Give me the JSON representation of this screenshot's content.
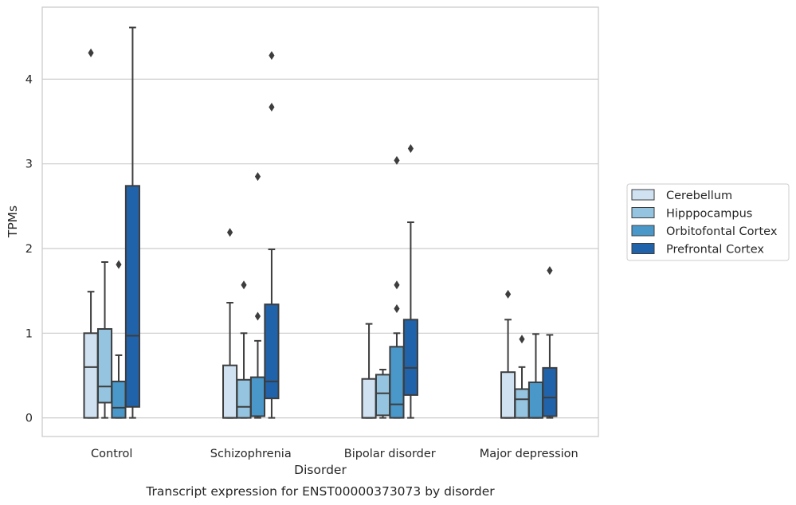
{
  "chart_data": {
    "type": "box",
    "title": "Transcript expression for ENST00000373073 by disorder",
    "xlabel": "Disorder",
    "ylabel": "TPMs",
    "ylim": [
      -0.22,
      4.85
    ],
    "yticks": [
      0,
      1,
      2,
      3,
      4
    ],
    "grid": "horizontal",
    "legend_position": "right",
    "categories": [
      "Control",
      "Schizophrenia",
      "Bipolar disorder",
      "Major depression"
    ],
    "series": [
      {
        "name": "Cerebellum",
        "color": "#d0e1f2",
        "boxes": [
          {
            "whislo": 0.0,
            "q1": 0.0,
            "med": 0.6,
            "q3": 1.0,
            "whishi": 1.49,
            "fliers": [
              4.31
            ]
          },
          {
            "whislo": 0.0,
            "q1": 0.0,
            "med": 0.0,
            "q3": 0.62,
            "whishi": 1.36,
            "fliers": [
              2.19
            ]
          },
          {
            "whislo": 0.0,
            "q1": 0.0,
            "med": 0.0,
            "q3": 0.46,
            "whishi": 1.11,
            "fliers": []
          },
          {
            "whislo": 0.0,
            "q1": 0.0,
            "med": 0.0,
            "q3": 0.54,
            "whishi": 1.16,
            "fliers": [
              1.46
            ]
          }
        ]
      },
      {
        "name": "Hipppocampus",
        "color": "#94c4df",
        "boxes": [
          {
            "whislo": 0.0,
            "q1": 0.18,
            "med": 0.37,
            "q3": 1.05,
            "whishi": 1.84,
            "fliers": []
          },
          {
            "whislo": 0.0,
            "q1": 0.0,
            "med": 0.13,
            "q3": 0.45,
            "whishi": 1.0,
            "fliers": [
              1.57
            ]
          },
          {
            "whislo": 0.0,
            "q1": 0.03,
            "med": 0.29,
            "q3": 0.51,
            "whishi": 0.57,
            "fliers": []
          },
          {
            "whislo": 0.0,
            "q1": 0.0,
            "med": 0.22,
            "q3": 0.34,
            "whishi": 0.6,
            "fliers": [
              0.93
            ]
          }
        ]
      },
      {
        "name": "Orbitofontal Cortex",
        "color": "#4a98c9",
        "boxes": [
          {
            "whislo": 0.0,
            "q1": 0.0,
            "med": 0.12,
            "q3": 0.43,
            "whishi": 0.74,
            "fliers": [
              1.81
            ]
          },
          {
            "whislo": 0.0,
            "q1": 0.02,
            "med": 0.02,
            "q3": 0.48,
            "whishi": 0.91,
            "fliers": [
              1.2,
              2.85
            ]
          },
          {
            "whislo": 0.0,
            "q1": 0.0,
            "med": 0.16,
            "q3": 0.84,
            "whishi": 1.0,
            "fliers": [
              1.29,
              1.57,
              3.04
            ]
          },
          {
            "whislo": 0.0,
            "q1": 0.0,
            "med": 0.0,
            "q3": 0.42,
            "whishi": 0.99,
            "fliers": []
          }
        ]
      },
      {
        "name": "Prefrontal Cortex",
        "color": "#2163aa",
        "boxes": [
          {
            "whislo": 0.0,
            "q1": 0.13,
            "med": 0.97,
            "q3": 2.74,
            "whishi": 4.61,
            "fliers": []
          },
          {
            "whislo": 0.0,
            "q1": 0.23,
            "med": 0.43,
            "q3": 1.34,
            "whishi": 1.99,
            "fliers": [
              3.67,
              4.28
            ]
          },
          {
            "whislo": 0.0,
            "q1": 0.27,
            "med": 0.59,
            "q3": 1.16,
            "whishi": 2.31,
            "fliers": [
              3.18
            ]
          },
          {
            "whislo": 0.0,
            "q1": 0.02,
            "med": 0.24,
            "q3": 0.59,
            "whishi": 0.98,
            "fliers": [
              1.74
            ]
          }
        ]
      }
    ]
  }
}
